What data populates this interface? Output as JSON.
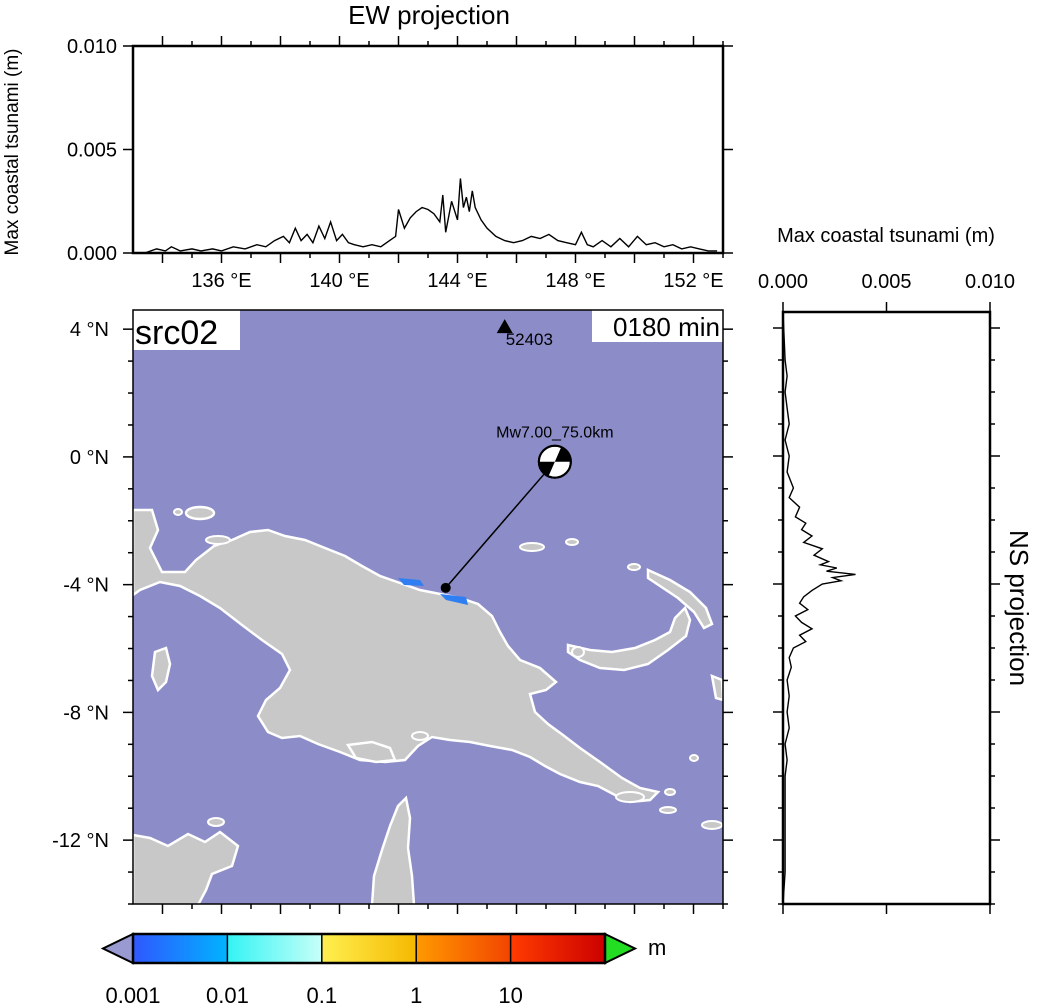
{
  "chart_data": [
    {
      "type": "line",
      "title": "EW projection",
      "ylabel": "Max coastal tsunami (m)",
      "xlim": [
        133.0,
        153.0
      ],
      "ylim": [
        0.0,
        0.01
      ],
      "xticks": [
        "136 °E",
        "140 °E",
        "144 °E",
        "148 °E",
        "152 °E"
      ],
      "xtick_values": [
        136,
        140,
        144,
        148,
        152
      ],
      "yticks": [
        "0.000",
        "0.005",
        "0.010"
      ],
      "ytick_values": [
        0.0,
        0.005,
        0.01
      ],
      "series": [
        {
          "x": [
            133.4,
            133.8,
            134.1,
            134.3,
            134.6,
            135.0,
            135.3,
            135.7,
            136.0,
            136.4,
            136.8,
            137.2,
            137.5,
            137.8,
            138.1,
            138.3,
            138.5,
            138.7,
            138.9,
            139.1,
            139.3,
            139.5,
            139.7,
            139.9,
            140.1,
            140.3,
            140.5,
            140.8,
            141.1,
            141.4,
            141.7,
            141.9,
            142.0,
            142.2,
            142.4,
            142.6,
            142.8,
            143.0,
            143.2,
            143.4,
            143.5,
            143.6,
            143.8,
            144.0,
            144.1,
            144.2,
            144.3,
            144.4,
            144.5,
            144.6,
            144.8,
            145.0,
            145.3,
            145.6,
            145.9,
            146.2,
            146.5,
            146.8,
            147.1,
            147.4,
            147.7,
            148.0,
            148.2,
            148.4,
            148.6,
            148.9,
            149.2,
            149.5,
            149.8,
            150.1,
            150.4,
            150.7,
            151.0,
            151.3,
            151.6,
            151.9,
            152.2,
            152.5,
            152.8
          ],
          "values": [
            0.0,
            0.0002,
            0.0001,
            0.0003,
            0.0001,
            0.0002,
            0.0001,
            0.0002,
            0.0001,
            0.0003,
            0.0002,
            0.0004,
            0.0003,
            0.0006,
            0.0008,
            0.0005,
            0.0012,
            0.0006,
            0.0009,
            0.0005,
            0.0013,
            0.0007,
            0.0015,
            0.0006,
            0.0009,
            0.0005,
            0.0004,
            0.0003,
            0.0004,
            0.0003,
            0.0006,
            0.0008,
            0.0021,
            0.0012,
            0.0017,
            0.002,
            0.0022,
            0.0021,
            0.0019,
            0.0015,
            0.0028,
            0.001,
            0.0025,
            0.0016,
            0.0036,
            0.0022,
            0.0027,
            0.002,
            0.003,
            0.0022,
            0.0016,
            0.0012,
            0.0008,
            0.0006,
            0.0005,
            0.0006,
            0.0008,
            0.0007,
            0.0009,
            0.0006,
            0.0005,
            0.0004,
            0.001,
            0.0004,
            0.0003,
            0.0006,
            0.0003,
            0.0007,
            0.0003,
            0.0008,
            0.0004,
            0.0005,
            0.0003,
            0.0004,
            0.0002,
            0.0003,
            0.0002,
            0.0001,
            0.0001
          ]
        }
      ]
    },
    {
      "type": "line",
      "title": "NS projection",
      "xlabel": "Max coastal tsunami (m)",
      "xlim": [
        0.0,
        0.01
      ],
      "ylim": [
        -14.0,
        4.5
      ],
      "xticks": [
        "0.000",
        "0.005",
        "0.010"
      ],
      "xtick_values": [
        0.0,
        0.005,
        0.01
      ],
      "series": [
        {
          "lat": [
            4.5,
            3.0,
            2.5,
            2.0,
            1.5,
            1.0,
            0.5,
            0.0,
            -0.5,
            -1.0,
            -1.3,
            -1.6,
            -1.9,
            -2.1,
            -2.3,
            -2.5,
            -2.7,
            -2.9,
            -3.1,
            -3.3,
            -3.4,
            -3.5,
            -3.6,
            -3.7,
            -3.8,
            -3.9,
            -4.0,
            -4.2,
            -4.4,
            -4.6,
            -4.8,
            -5.0,
            -5.2,
            -5.4,
            -5.6,
            -5.8,
            -6.0,
            -6.3,
            -6.6,
            -7.0,
            -7.5,
            -8.0,
            -8.5,
            -9.0,
            -9.5,
            -10.0,
            -11.0,
            -12.0,
            -13.0,
            -14.0
          ],
          "values": [
            0.0,
            0.0001,
            0.0002,
            0.0001,
            0.0002,
            0.0003,
            0.0001,
            0.0003,
            0.0002,
            0.0005,
            0.0003,
            0.0008,
            0.0006,
            0.0011,
            0.0009,
            0.0014,
            0.001,
            0.0019,
            0.0015,
            0.0022,
            0.0018,
            0.0026,
            0.0021,
            0.0035,
            0.0024,
            0.0028,
            0.0019,
            0.0014,
            0.001,
            0.0008,
            0.0012,
            0.0006,
            0.0009,
            0.0014,
            0.0008,
            0.0011,
            0.0005,
            0.0003,
            0.0004,
            0.0002,
            0.0003,
            0.0002,
            0.0003,
            0.0001,
            0.0002,
            0.0001,
            0.0001,
            0.0001,
            0.0001,
            0.0
          ]
        }
      ]
    },
    {
      "type": "heatmap",
      "title": "src02",
      "time_label": "0180 min",
      "xlim": [
        133.0,
        153.0
      ],
      "ylim": [
        -14.0,
        4.6
      ],
      "yticks": [
        "4 °N",
        "0 °N",
        "-4 °N",
        "-8 °N",
        "-12 °N"
      ],
      "ytick_values": [
        4,
        0,
        -4,
        -8,
        -12
      ],
      "station": {
        "name": "52403",
        "lon": 145.6,
        "lat": 4.0
      },
      "event": {
        "label": "Mw7.00_75.0km",
        "lon": 143.6,
        "lat": -4.1,
        "beachball_lon": 147.3,
        "beachball_lat": -0.15
      },
      "colors": {
        "ocean": "#8c8cc8",
        "land": "#c8c8c8",
        "coast": "#ffffff",
        "wave": "#2f7ff2"
      }
    },
    {
      "type": "colorbar",
      "ticks": [
        "0.001",
        "0.01",
        "0.1",
        "1",
        "10"
      ],
      "unit": "m",
      "segments": [
        {
          "from": "#2f57ff",
          "to": "#00b4ff"
        },
        {
          "from": "#33f4f4",
          "to": "#c8fff8"
        },
        {
          "from": "#fff050",
          "to": "#f5b800"
        },
        {
          "from": "#ff9a00",
          "to": "#f24400"
        },
        {
          "from": "#ff3c00",
          "to": "#cc0000"
        }
      ],
      "under_color": "#9a9ad2",
      "over_color": "#22dd22"
    }
  ]
}
